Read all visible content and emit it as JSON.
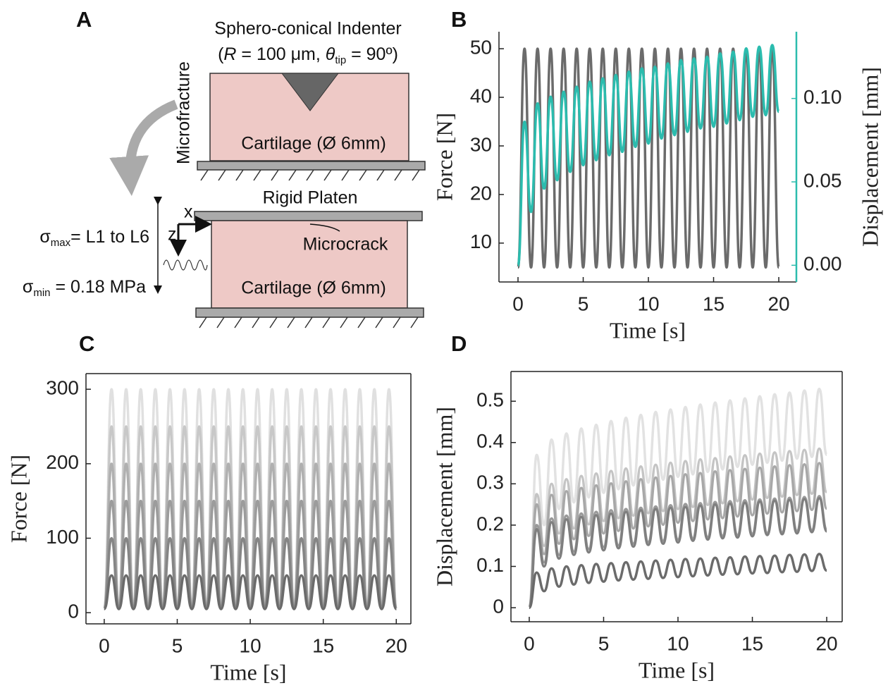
{
  "diagram": {
    "panel_label": "A",
    "indenter_title": "Sphero-conical Indenter",
    "indenter_params": [
      "(",
      "R",
      " = 100 μm, ",
      "θ",
      "tip",
      " = 90º)"
    ],
    "microfracture": "Microfracture",
    "cartilage_top": "Cartilage (Ø 6mm)",
    "rigid_platen": "Rigid Platen",
    "microcrack": "Microcrack",
    "cartilage_bottom": "Cartilage (Ø 6mm)",
    "axis_x": "x",
    "axis_z": "z",
    "sigma_max": [
      "σ",
      "max",
      "= L1 to L6"
    ],
    "sigma_min": [
      "σ",
      "min",
      " = 0.18 MPa"
    ]
  },
  "chart_data": [
    {
      "type": "line",
      "panel_label": "B",
      "xlabel": "Time [s]",
      "ylabel": "Force [N]",
      "y2label": "Displacement [mm]",
      "x": [
        0,
        0.5,
        1,
        1.5,
        2,
        2.5,
        3,
        3.5,
        4,
        4.5,
        5,
        5.5,
        6,
        6.5,
        7,
        7.5,
        8,
        8.5,
        9,
        9.5,
        10,
        10.5,
        11,
        11.5,
        12,
        12.5,
        13,
        13.5,
        14,
        14.5,
        15,
        15.5,
        16,
        16.5,
        17,
        17.5,
        18,
        18.5,
        19,
        19.5,
        20
      ],
      "xlim": [
        -1.46,
        21.35
      ],
      "xticks": [
        0,
        5,
        10,
        15,
        20
      ],
      "ylim": [
        2,
        53.5
      ],
      "yticks": [
        10,
        20,
        30,
        40,
        50
      ],
      "y2lim": [
        -0.01,
        0.14
      ],
      "y2ticks": [
        {
          "value": 0,
          "label": "0.00"
        },
        {
          "value": 0.05,
          "label": "0.05"
        },
        {
          "value": 0.1,
          "label": "0.10"
        }
      ],
      "series": [
        {
          "color": "#6b6b6b",
          "values": [
            5,
            50,
            5,
            50,
            5,
            50,
            5,
            50,
            5,
            50,
            5,
            50,
            5,
            50,
            5,
            50,
            5,
            50,
            5,
            50,
            5,
            50,
            5,
            50,
            5,
            50,
            5,
            50,
            5,
            50,
            5,
            50,
            5,
            50,
            5,
            50,
            5,
            50,
            5,
            50,
            5
          ]
        },
        {
          "color": "#2bbcae",
          "axis": "y2",
          "values": [
            0,
            0.086,
            0.032,
            0.097,
            0.046,
            0.101,
            0.051,
            0.104,
            0.056,
            0.107,
            0.06,
            0.11,
            0.063,
            0.112,
            0.066,
            0.114,
            0.068,
            0.116,
            0.071,
            0.118,
            0.073,
            0.119,
            0.076,
            0.121,
            0.078,
            0.123,
            0.08,
            0.124,
            0.082,
            0.125,
            0.083,
            0.127,
            0.085,
            0.128,
            0.087,
            0.13,
            0.089,
            0.131,
            0.09,
            0.132,
            0.092
          ]
        }
      ]
    },
    {
      "type": "line",
      "panel_label": "C",
      "xlabel": "Time [s]",
      "ylabel": "Force [N]",
      "x": [
        0,
        0.5,
        1,
        1.5,
        2,
        2.5,
        3,
        3.5,
        4,
        4.5,
        5,
        5.5,
        6,
        6.5,
        7,
        7.5,
        8,
        8.5,
        9,
        9.5,
        10,
        10.5,
        11,
        11.5,
        12,
        12.5,
        13,
        13.5,
        14,
        14.5,
        15,
        15.5,
        16,
        16.5,
        17,
        17.5,
        18,
        18.5,
        19,
        19.5,
        20
      ],
      "xlim": [
        -1.25,
        21
      ],
      "xticks": [
        0,
        5,
        10,
        15,
        20
      ],
      "ylim": [
        -15,
        321
      ],
      "yticks": [
        0,
        100,
        200,
        300
      ],
      "series": [
        {
          "color": "#6b6b6b",
          "values": [
            5,
            50,
            5,
            50,
            5,
            50,
            5,
            50,
            5,
            50,
            5,
            50,
            5,
            50,
            5,
            50,
            5,
            50,
            5,
            50,
            5,
            50,
            5,
            50,
            5,
            50,
            5,
            50,
            5,
            50,
            5,
            50,
            5,
            50,
            5,
            50,
            5,
            50,
            5,
            50,
            5
          ]
        },
        {
          "color": "#858585",
          "values": [
            5,
            100,
            5,
            100,
            5,
            100,
            5,
            100,
            5,
            100,
            5,
            100,
            5,
            100,
            5,
            100,
            5,
            100,
            5,
            100,
            5,
            100,
            5,
            100,
            5,
            100,
            5,
            100,
            5,
            100,
            5,
            100,
            5,
            100,
            5,
            100,
            5,
            100,
            5,
            100,
            5
          ]
        },
        {
          "color": "#9c9c9c",
          "values": [
            5,
            150,
            5,
            150,
            5,
            150,
            5,
            150,
            5,
            150,
            5,
            150,
            5,
            150,
            5,
            150,
            5,
            150,
            5,
            150,
            5,
            150,
            5,
            150,
            5,
            150,
            5,
            150,
            5,
            150,
            5,
            150,
            5,
            150,
            5,
            150,
            5,
            150,
            5,
            150,
            5
          ]
        },
        {
          "color": "#b0b0b0",
          "values": [
            5,
            200,
            5,
            200,
            5,
            200,
            5,
            200,
            5,
            200,
            5,
            200,
            5,
            200,
            5,
            200,
            5,
            200,
            5,
            200,
            5,
            200,
            5,
            200,
            5,
            200,
            5,
            200,
            5,
            200,
            5,
            200,
            5,
            200,
            5,
            200,
            5,
            200,
            5,
            200,
            5
          ]
        },
        {
          "color": "#c8c8c8",
          "values": [
            5,
            250,
            5,
            250,
            5,
            250,
            5,
            250,
            5,
            250,
            5,
            250,
            5,
            250,
            5,
            250,
            5,
            250,
            5,
            250,
            5,
            250,
            5,
            250,
            5,
            250,
            5,
            250,
            5,
            250,
            5,
            250,
            5,
            250,
            5,
            250,
            5,
            250,
            5,
            250,
            5
          ]
        },
        {
          "color": "#e0e0e0",
          "values": [
            5,
            300,
            5,
            300,
            5,
            300,
            5,
            300,
            5,
            300,
            5,
            300,
            5,
            300,
            5,
            300,
            5,
            300,
            5,
            300,
            5,
            300,
            5,
            300,
            5,
            300,
            5,
            300,
            5,
            300,
            5,
            300,
            5,
            300,
            5,
            300,
            5,
            300,
            5,
            300,
            5
          ]
        }
      ]
    },
    {
      "type": "line",
      "panel_label": "D",
      "xlabel": "Time [s]",
      "ylabel": "Displacement [mm]",
      "x": [
        0,
        0.5,
        1,
        1.5,
        2,
        2.5,
        3,
        3.5,
        4,
        4.5,
        5,
        5.5,
        6,
        6.5,
        7,
        7.5,
        8,
        8.5,
        9,
        9.5,
        10,
        10.5,
        11,
        11.5,
        12,
        12.5,
        13,
        13.5,
        14,
        14.5,
        15,
        15.5,
        16,
        16.5,
        17,
        17.5,
        18,
        18.5,
        19,
        19.5,
        20
      ],
      "xlim": [
        -1.23,
        21.04
      ],
      "xticks": [
        0,
        5,
        10,
        15,
        20
      ],
      "ylim": [
        -0.034,
        0.572
      ],
      "yticks": [
        0,
        0.1,
        0.2,
        0.3,
        0.4,
        0.5
      ],
      "series": [
        {
          "color": "#6b6b6b",
          "values": [
            0,
            0.085,
            0.04,
            0.095,
            0.051,
            0.1,
            0.056,
            0.103,
            0.06,
            0.106,
            0.063,
            0.108,
            0.066,
            0.11,
            0.068,
            0.112,
            0.07,
            0.114,
            0.072,
            0.116,
            0.074,
            0.118,
            0.076,
            0.119,
            0.078,
            0.121,
            0.08,
            0.122,
            0.081,
            0.124,
            0.083,
            0.125,
            0.084,
            0.126,
            0.086,
            0.128,
            0.087,
            0.129,
            0.089,
            0.13,
            0.09
          ]
        },
        {
          "color": "#7f7f7f",
          "values": [
            0,
            0.19,
            0.1,
            0.207,
            0.119,
            0.214,
            0.128,
            0.22,
            0.134,
            0.224,
            0.139,
            0.228,
            0.144,
            0.232,
            0.148,
            0.236,
            0.152,
            0.239,
            0.155,
            0.242,
            0.158,
            0.244,
            0.162,
            0.247,
            0.165,
            0.25,
            0.168,
            0.252,
            0.17,
            0.254,
            0.173,
            0.257,
            0.176,
            0.259,
            0.178,
            0.261,
            0.18,
            0.263,
            0.183,
            0.265,
            0.185
          ]
        },
        {
          "color": "#9a9a9a",
          "values": [
            0,
            0.2,
            0.11,
            0.216,
            0.128,
            0.223,
            0.136,
            0.228,
            0.142,
            0.232,
            0.147,
            0.236,
            0.151,
            0.239,
            0.155,
            0.242,
            0.159,
            0.245,
            0.162,
            0.248,
            0.165,
            0.251,
            0.168,
            0.253,
            0.171,
            0.256,
            0.174,
            0.258,
            0.176,
            0.26,
            0.179,
            0.262,
            0.181,
            0.264,
            0.183,
            0.266,
            0.186,
            0.268,
            0.188,
            0.27,
            0.19
          ]
        },
        {
          "color": "#a8a8a8",
          "values": [
            0,
            0.25,
            0.13,
            0.273,
            0.155,
            0.282,
            0.166,
            0.29,
            0.174,
            0.296,
            0.18,
            0.301,
            0.186,
            0.306,
            0.192,
            0.311,
            0.197,
            0.315,
            0.201,
            0.319,
            0.206,
            0.323,
            0.21,
            0.326,
            0.214,
            0.33,
            0.217,
            0.333,
            0.221,
            0.336,
            0.224,
            0.339,
            0.228,
            0.342,
            0.231,
            0.345,
            0.234,
            0.347,
            0.237,
            0.35,
            0.24
          ]
        },
        {
          "color": "#c4c4c4",
          "values": [
            0,
            0.275,
            0.15,
            0.3,
            0.18,
            0.311,
            0.192,
            0.319,
            0.202,
            0.325,
            0.21,
            0.331,
            0.217,
            0.337,
            0.223,
            0.342,
            0.229,
            0.346,
            0.234,
            0.351,
            0.239,
            0.355,
            0.244,
            0.359,
            0.249,
            0.362,
            0.253,
            0.366,
            0.258,
            0.369,
            0.262,
            0.373,
            0.266,
            0.376,
            0.269,
            0.379,
            0.273,
            0.382,
            0.276,
            0.385,
            0.28
          ]
        },
        {
          "color": "#e2e2e2",
          "values": [
            0,
            0.37,
            0.2,
            0.407,
            0.239,
            0.422,
            0.255,
            0.434,
            0.267,
            0.443,
            0.278,
            0.452,
            0.287,
            0.46,
            0.296,
            0.467,
            0.303,
            0.474,
            0.31,
            0.48,
            0.317,
            0.486,
            0.323,
            0.492,
            0.329,
            0.497,
            0.335,
            0.502,
            0.341,
            0.507,
            0.346,
            0.512,
            0.351,
            0.517,
            0.356,
            0.521,
            0.361,
            0.526,
            0.365,
            0.53,
            0.37
          ]
        }
      ]
    }
  ]
}
